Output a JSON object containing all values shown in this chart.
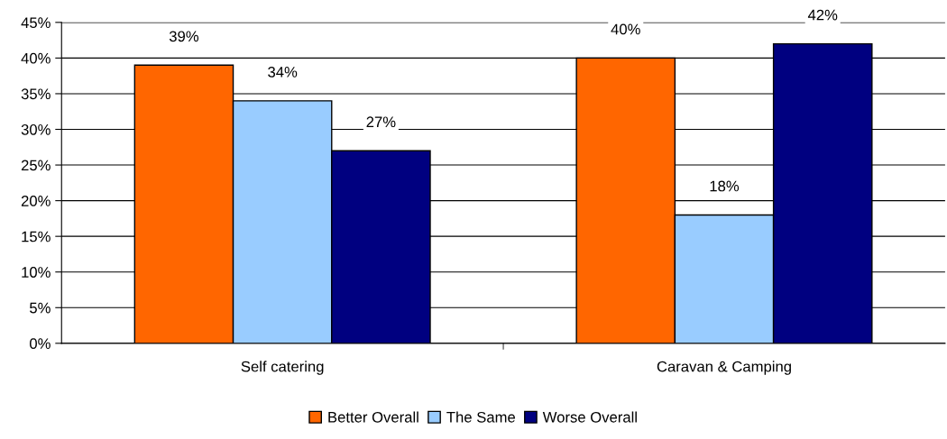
{
  "chart_data": {
    "type": "bar",
    "categories": [
      "Self catering",
      "Caravan & Camping"
    ],
    "series": [
      {
        "name": "Better Overall",
        "color": "#ff6600",
        "values": [
          39,
          40
        ],
        "value_labels": [
          "39%",
          "40%"
        ]
      },
      {
        "name": "The Same",
        "color": "#99ccff",
        "values": [
          34,
          18
        ],
        "value_labels": [
          "34%",
          "18%"
        ]
      },
      {
        "name": "Worse Overall",
        "color": "#000080",
        "values": [
          27,
          42
        ],
        "value_labels": [
          "27%",
          "42%"
        ]
      }
    ],
    "ylim": [
      0,
      45
    ],
    "yticks": [
      {
        "value": 0,
        "label": "0%"
      },
      {
        "value": 5,
        "label": "5%"
      },
      {
        "value": 10,
        "label": "10%"
      },
      {
        "value": 15,
        "label": "15%"
      },
      {
        "value": 20,
        "label": "20%"
      },
      {
        "value": 25,
        "label": "25%"
      },
      {
        "value": 30,
        "label": "30%"
      },
      {
        "value": 35,
        "label": "35%"
      },
      {
        "value": 40,
        "label": "40%"
      },
      {
        "value": 45,
        "label": "45%"
      }
    ],
    "grid": "y",
    "legend": "bottom"
  }
}
